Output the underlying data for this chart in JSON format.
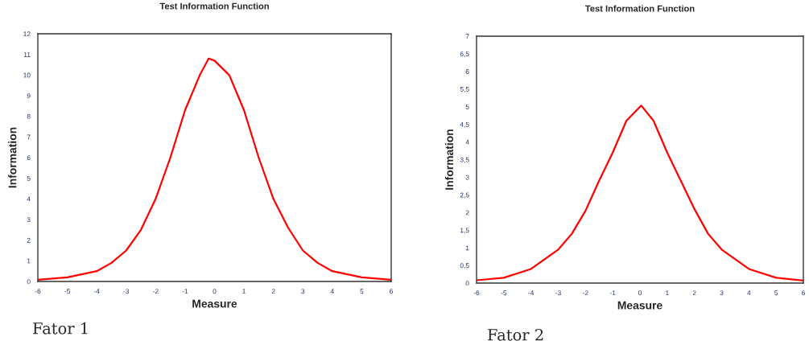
{
  "chart_data": [
    {
      "type": "line",
      "title": "Test Information Function",
      "xlabel": "Measure",
      "ylabel": "Information",
      "annotations": [
        "Fator 1"
      ],
      "x": [
        -6,
        -5,
        -4,
        -3.5,
        -3,
        -2.5,
        -2,
        -1.5,
        -1,
        -0.5,
        -0.2,
        0,
        0.5,
        1,
        1.5,
        2,
        2.5,
        3,
        3.5,
        4,
        5,
        6
      ],
      "series": [
        {
          "color": "#ff0000",
          "values": [
            0.08,
            0.2,
            0.5,
            0.9,
            1.5,
            2.5,
            4.0,
            6.0,
            8.3,
            10.0,
            10.8,
            10.7,
            10.0,
            8.3,
            6.0,
            4.0,
            2.6,
            1.5,
            0.9,
            0.5,
            0.2,
            0.08
          ]
        }
      ],
      "xlim": [
        -6,
        6
      ],
      "xticks": [
        -6,
        -5,
        -4,
        -3,
        -2,
        -1,
        0,
        1,
        2,
        3,
        4,
        5,
        6
      ],
      "ylim": [
        0,
        12
      ],
      "yticks": [
        0,
        1,
        2,
        3,
        4,
        5,
        6,
        7,
        8,
        9,
        10,
        11,
        12
      ],
      "grid": false,
      "marker": "none",
      "line_style": "solid"
    },
    {
      "type": "line",
      "title": "Test Information Function",
      "xlabel": "Measure",
      "ylabel": "Information",
      "annotations": [
        "Fator 2"
      ],
      "x": [
        -6,
        -5,
        -4,
        -3,
        -2.5,
        -2,
        -1.5,
        -1,
        -0.5,
        0,
        0.05,
        0.5,
        1,
        1.5,
        2,
        2.5,
        3,
        4,
        5,
        6
      ],
      "series": [
        {
          "color": "#ff0000",
          "values": [
            0.08,
            0.15,
            0.4,
            0.95,
            1.4,
            2.05,
            2.9,
            3.7,
            4.6,
            5.0,
            5.03,
            4.6,
            3.7,
            2.9,
            2.1,
            1.4,
            0.95,
            0.4,
            0.15,
            0.07
          ]
        }
      ],
      "xlim": [
        -6,
        6
      ],
      "xticks": [
        -6,
        -5,
        -4,
        -3,
        -2,
        -1,
        0,
        1,
        2,
        3,
        4,
        5,
        6
      ],
      "ylim": [
        0,
        7
      ],
      "yticks": [
        0,
        {
          "value": 0.5,
          "label": "0,5"
        },
        1,
        {
          "value": 1.5,
          "label": "1,5"
        },
        2,
        {
          "value": 2.5,
          "label": "2,5"
        },
        3,
        {
          "value": 3.5,
          "label": "3,5"
        },
        4,
        {
          "value": 4.5,
          "label": "4,5"
        },
        5,
        {
          "value": 5.5,
          "label": "5,5"
        },
        6,
        {
          "value": 6.5,
          "label": "6,5"
        },
        7
      ],
      "grid": false,
      "marker": "none",
      "line_style": "solid"
    }
  ]
}
